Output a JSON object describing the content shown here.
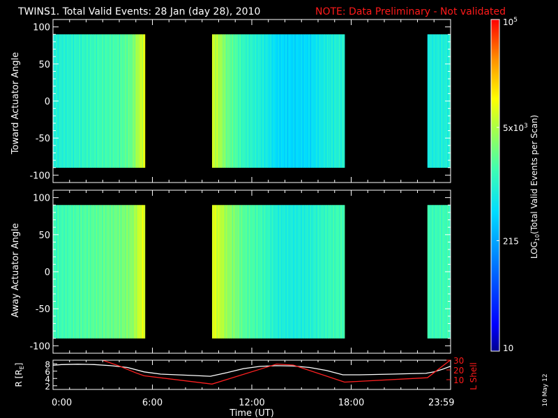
{
  "title": {
    "main": "TWINS1. Total Valid Events: 28 Jan (day  28), 2010",
    "note": "NOTE: Data Preliminary - Not validated",
    "note_color": "#ff2020"
  },
  "stamp": "10 May 12",
  "colors": {
    "background": "#000000",
    "axes": "#ffffff",
    "lshell_line": "#ff2020",
    "r_line": "#ffffff"
  },
  "chart_data": [
    {
      "type": "heatmap",
      "title": "",
      "ylabel": "Toward Actuator Angle",
      "ylim": [
        -110,
        110
      ],
      "yticks": [
        -100,
        -50,
        0,
        50,
        100
      ],
      "ytick_labels": [
        "-100",
        "-50",
        "0",
        "50",
        "100"
      ],
      "data_angle_range": [
        -90,
        90
      ],
      "xlim_hours": [
        0,
        24
      ],
      "data_intervals_hours": [
        [
          0.0,
          5.55
        ],
        [
          9.6,
          17.6
        ],
        [
          22.6,
          23.98
        ]
      ],
      "log_counts_scale": [
        10,
        100000
      ],
      "value_profile_note": "counts by time; roughly constant with angle",
      "time_profile": [
        {
          "t": 0.0,
          "v": 900
        },
        {
          "t": 1.0,
          "v": 1000
        },
        {
          "t": 2.0,
          "v": 1200
        },
        {
          "t": 3.0,
          "v": 1500
        },
        {
          "t": 4.0,
          "v": 1700
        },
        {
          "t": 4.8,
          "v": 2500
        },
        {
          "t": 5.5,
          "v": 8000
        },
        {
          "t": 9.6,
          "v": 7000
        },
        {
          "t": 10.5,
          "v": 2500
        },
        {
          "t": 11.5,
          "v": 1200
        },
        {
          "t": 12.5,
          "v": 900
        },
        {
          "t": 13.5,
          "v": 500
        },
        {
          "t": 14.5,
          "v": 450
        },
        {
          "t": 15.5,
          "v": 500
        },
        {
          "t": 16.5,
          "v": 800
        },
        {
          "t": 17.6,
          "v": 1000
        },
        {
          "t": 22.6,
          "v": 800
        },
        {
          "t": 23.98,
          "v": 900
        }
      ]
    },
    {
      "type": "heatmap",
      "title": "",
      "ylabel": "Away Actuator Angle",
      "ylim": [
        -110,
        110
      ],
      "yticks": [
        -100,
        -50,
        0,
        50,
        100
      ],
      "ytick_labels": [
        "-100",
        "-50",
        "0",
        "50",
        "100"
      ],
      "data_angle_range": [
        -90,
        90
      ],
      "xlim_hours": [
        0,
        24
      ],
      "data_intervals_hours": [
        [
          0.0,
          5.55
        ],
        [
          9.6,
          17.6
        ],
        [
          22.6,
          23.98
        ]
      ],
      "log_counts_scale": [
        10,
        100000
      ],
      "time_profile": [
        {
          "t": 0.0,
          "v": 1400
        },
        {
          "t": 1.0,
          "v": 1600
        },
        {
          "t": 2.0,
          "v": 1900
        },
        {
          "t": 3.0,
          "v": 2200
        },
        {
          "t": 4.0,
          "v": 2600
        },
        {
          "t": 4.8,
          "v": 3500
        },
        {
          "t": 5.5,
          "v": 9000
        },
        {
          "t": 9.6,
          "v": 9000
        },
        {
          "t": 10.5,
          "v": 4000
        },
        {
          "t": 11.5,
          "v": 2000
        },
        {
          "t": 12.5,
          "v": 1500
        },
        {
          "t": 13.5,
          "v": 900
        },
        {
          "t": 14.5,
          "v": 800
        },
        {
          "t": 15.5,
          "v": 900
        },
        {
          "t": 16.5,
          "v": 1300
        },
        {
          "t": 17.6,
          "v": 1600
        },
        {
          "t": 22.6,
          "v": 1400
        },
        {
          "t": 23.98,
          "v": 1500
        }
      ]
    },
    {
      "type": "line",
      "title": "",
      "xlabel": "Time (UT)",
      "xlim_hours": [
        0,
        24
      ],
      "xticks_hours": [
        0,
        6,
        12,
        18,
        23.98
      ],
      "xtick_labels": [
        "0:00",
        "6:00",
        "12:00",
        "18:00",
        "23:59"
      ],
      "ylabel_left": "R [R_E]",
      "ylabel_left_parts": [
        "R [R",
        "E",
        "]"
      ],
      "ylim_left": [
        1,
        9
      ],
      "yticks_left": [
        2,
        4,
        6,
        8
      ],
      "ylabel_right": "L Shell",
      "ylim_right": [
        0,
        30
      ],
      "yticks_right": [
        10,
        20,
        30
      ],
      "ytick_labels_right": [
        "10",
        "20",
        "30"
      ],
      "series": [
        {
          "axis": "left",
          "color": "#ffffff",
          "x": [
            0,
            0.5,
            1.5,
            2.5,
            3.5,
            4.5,
            5.5,
            6.5,
            7.5,
            8.5,
            9.5,
            10.5,
            11.5,
            12.5,
            13.5,
            14.5,
            15.5,
            16.5,
            17.5,
            18.5,
            19.5,
            20.5,
            21.5,
            22.5,
            23.0,
            23.5,
            23.98
          ],
          "y": [
            7.6,
            7.8,
            7.9,
            7.8,
            7.5,
            7.0,
            5.8,
            5.2,
            5.0,
            4.8,
            4.6,
            5.6,
            6.7,
            7.3,
            7.5,
            7.4,
            7.0,
            6.2,
            5.0,
            5.0,
            5.1,
            5.2,
            5.3,
            5.4,
            5.8,
            6.5,
            7.3
          ]
        },
        {
          "axis": "right",
          "color": "#ff2020",
          "x": [
            3.0,
            4.0,
            5.0,
            5.5,
            9.6,
            13.5,
            14.5,
            17.6,
            22.6,
            23.98
          ],
          "y": [
            30,
            24,
            17,
            14,
            5.5,
            26,
            25,
            7.5,
            12,
            30
          ]
        }
      ]
    },
    {
      "type": "heatmap",
      "title": "",
      "ylabel": "LOG_10(Total Valid Events per Scan)",
      "ylabel_parts": [
        "LOG",
        "10",
        "(Total Valid Events per Scan)"
      ],
      "colorbar": true,
      "ylim": [
        10,
        100000
      ],
      "scale": "log",
      "ticks": [
        {
          "value": 10,
          "label": "10",
          "sup": ""
        },
        {
          "value": 215,
          "label": "215",
          "sup": ""
        },
        {
          "value": 5000,
          "label": "5x10",
          "sup": "3"
        },
        {
          "value": 100000,
          "label": "10",
          "sup": "5"
        }
      ]
    }
  ]
}
